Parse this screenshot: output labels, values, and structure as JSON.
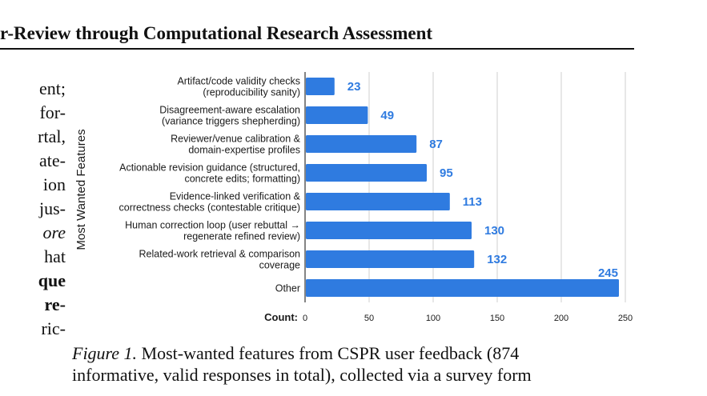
{
  "header": {
    "title": "r-Review through Computational Research Assessment"
  },
  "left_column": [
    {
      "text": "ent;",
      "style": ""
    },
    {
      "text": "for-",
      "style": ""
    },
    {
      "text": "rtal,",
      "style": ""
    },
    {
      "text": "ate-",
      "style": ""
    },
    {
      "text": "ion",
      "style": ""
    },
    {
      "text": "jus-",
      "style": ""
    },
    {
      "text": "ore",
      "style": "it"
    },
    {
      "text": "hat",
      "style": ""
    },
    {
      "text": "que",
      "style": "b"
    },
    {
      "text": "re-",
      "style": "b"
    },
    {
      "text": "ric-",
      "style": ""
    }
  ],
  "chart_data": {
    "type": "bar",
    "orientation": "horizontal",
    "ylabel": "Most Wanted Features",
    "xlabel": "Count:",
    "xlim": [
      0,
      250
    ],
    "xticks": [
      0,
      50,
      100,
      150,
      200,
      250
    ],
    "grid": true,
    "bar_color": "#2f7be0",
    "categories": [
      [
        "Artifact/code validity checks",
        "(reproducibility sanity)"
      ],
      [
        "Disagreement-aware escalation",
        "(variance triggers shepherding)"
      ],
      [
        "Reviewer/venue calibration &",
        "domain-expertise profiles"
      ],
      [
        "Actionable revision guidance (structured,",
        "concrete edits; formatting)"
      ],
      [
        "Evidence-linked verification &",
        "correctness checks (contestable critique)"
      ],
      [
        "Human correction loop (user rebuttal →",
        "regenerate refined review)"
      ],
      [
        "Related-work retrieval & comparison",
        "coverage"
      ],
      [
        "Other"
      ]
    ],
    "values": [
      23,
      49,
      87,
      95,
      113,
      130,
      132,
      245
    ]
  },
  "caption": {
    "figure_label": "Figure 1.",
    "line1": " Most-wanted features from CSPR user feedback (874",
    "line2": "informative, valid responses in total), collected via a survey form"
  }
}
